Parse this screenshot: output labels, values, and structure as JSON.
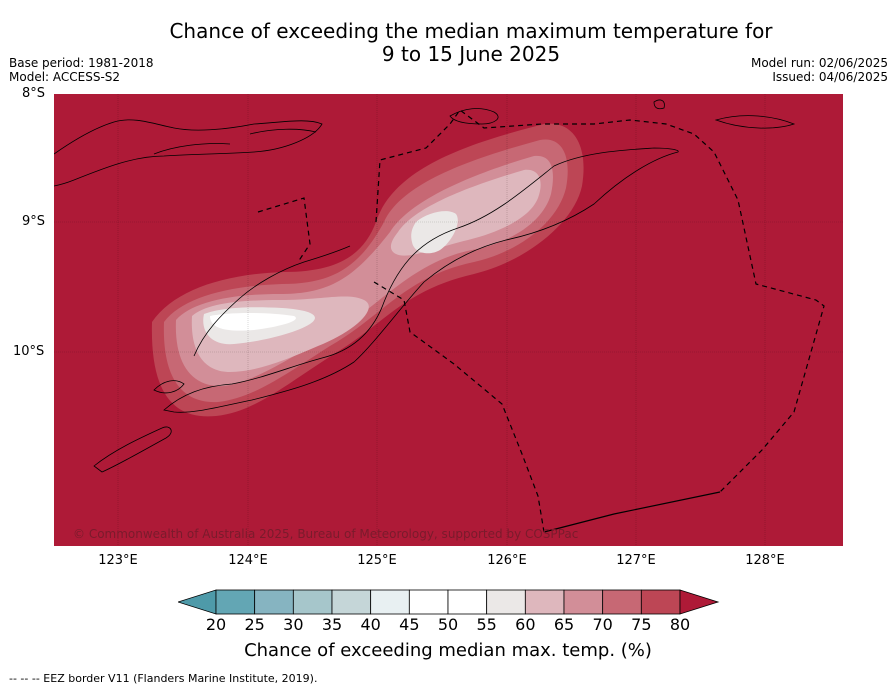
{
  "title_line1": "Chance of exceeding the median maximum temperature for",
  "title_line2": "9 to 15 June 2025",
  "base_period": "Base period: 1981-2018",
  "model": "Model: ACCESS-S2",
  "model_run": "Model run: 02/06/2025",
  "issued": "Issued: 04/06/2025",
  "lat_labels": [
    "8°S",
    "9°S",
    "10°S"
  ],
  "lon_labels": [
    "123°E",
    "124°E",
    "125°E",
    "126°E",
    "127°E",
    "128°E"
  ],
  "copyright": "© Commonwealth of Australia 2025, Bureau of Meteorology, supported by COSPPac",
  "colorbar": {
    "ticks": [
      "20",
      "25",
      "30",
      "35",
      "40",
      "45",
      "50",
      "55",
      "60",
      "65",
      "70",
      "75",
      "80"
    ],
    "colors": [
      "#63a6b4",
      "#86b4c1",
      "#a6c6cb",
      "#c5d6d8",
      "#e8f0f2",
      "#ffffff",
      "#ffffff",
      "#ebe8e7",
      "#deb7bd",
      "#d28e98",
      "#c76874",
      "#bd4655"
    ],
    "under_color": "#4e9aa9",
    "over_color": "#ae1a37",
    "title": "Chance of exceeding median max. temp. (%)"
  },
  "map_colors": {
    "background": "#ae1a37"
  },
  "footer": "--  --  -- EEZ border V11 (Flanders Marine Institute, 2019)."
}
